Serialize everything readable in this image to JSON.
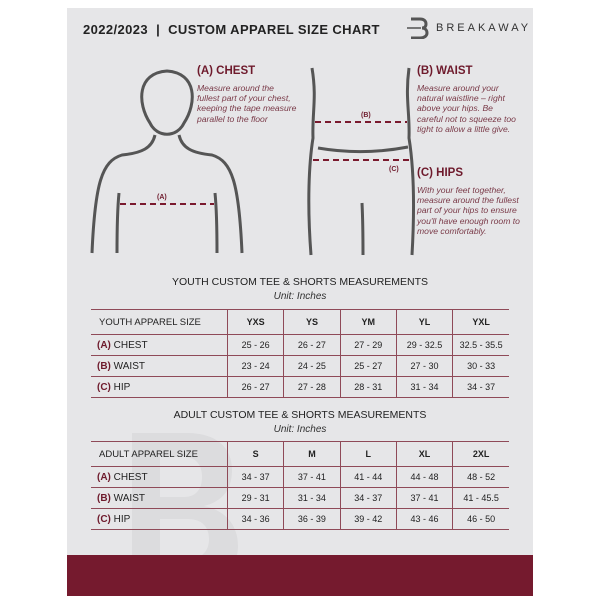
{
  "header": {
    "title": "2022/2023  |  CUSTOM APPAREL SIZE CHART",
    "brand": "BREAKAWAY"
  },
  "guides": {
    "chest": {
      "title": "(A) CHEST",
      "text": "Measure around the fullest part of your chest, keeping the tape measure parallel to the floor",
      "marker": "(A)"
    },
    "waist": {
      "title": "(B) WAIST",
      "text": "Measure around your natural waistline – right above your hips. Be careful not to squeeze too tight to allow a little give.",
      "marker": "(B)"
    },
    "hips": {
      "title": "(C) HIPS",
      "text": "With your feet together, measure around the fullest part of your hips to ensure you'll have enough room to move comfortably.",
      "marker": "(C)"
    }
  },
  "youth": {
    "title": "YOUTH CUSTOM TEE & SHORTS MEASUREMENTS",
    "unit": "Unit: Inches",
    "headers": [
      "YOUTH APPAREL SIZE",
      "YXS",
      "YS",
      "YM",
      "YL",
      "YXL"
    ],
    "rows": [
      {
        "code": "(A)",
        "name": "CHEST",
        "values": [
          "25 - 26",
          "26 - 27",
          "27 - 29",
          "29 - 32.5",
          "32.5 - 35.5"
        ]
      },
      {
        "code": "(B)",
        "name": "WAIST",
        "values": [
          "23 - 24",
          "24 - 25",
          "25 - 27",
          "27 - 30",
          "30 - 33"
        ]
      },
      {
        "code": "(C)",
        "name": "HIP",
        "values": [
          "26 - 27",
          "27 - 28",
          "28 - 31",
          "31 - 34",
          "34 - 37"
        ]
      }
    ]
  },
  "adult": {
    "title": "ADULT CUSTOM TEE & SHORTS MEASUREMENTS",
    "unit": "Unit: Inches",
    "headers": [
      "ADULT APPAREL SIZE",
      "S",
      "M",
      "L",
      "XL",
      "2XL"
    ],
    "rows": [
      {
        "code": "(A)",
        "name": "CHEST",
        "values": [
          "34 - 37",
          "37 - 41",
          "41 - 44",
          "44 - 48",
          "48 - 52"
        ]
      },
      {
        "code": "(B)",
        "name": "WAIST",
        "values": [
          "29 - 31",
          "31 - 34",
          "34 - 37",
          "37 - 41",
          "41 - 45.5"
        ]
      },
      {
        "code": "(C)",
        "name": "HIP",
        "values": [
          "34 - 36",
          "36 - 39",
          "39 - 42",
          "43 - 46",
          "46 - 50"
        ]
      }
    ]
  },
  "colors": {
    "accent": "#751a2e",
    "panel": "#e6e6e8"
  }
}
